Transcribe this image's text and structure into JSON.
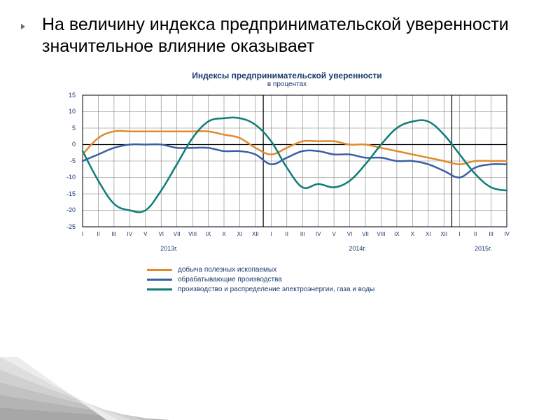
{
  "headline": "На величину индекса предпринимательской уверенности значительное влияние оказывает",
  "chart": {
    "type": "line",
    "title": "Индексы предпринимательской уверенности",
    "subtitle": "в процентах",
    "title_fontsize": 12,
    "title_color": "#1a3a6e",
    "background_color": "#ffffff",
    "grid_color": "#7f7f7f",
    "grid_width": 0.6,
    "axis_color": "#000000",
    "ylim": [
      -25,
      15
    ],
    "ytick_step": 5,
    "yticks": [
      15,
      10,
      5,
      0,
      -5,
      -10,
      -15,
      -20,
      -25
    ],
    "x_categories": [
      "I",
      "II",
      "III",
      "IV",
      "V",
      "VI",
      "VII",
      "VIII",
      "IX",
      "X",
      "XI",
      "XII",
      "I",
      "II",
      "III",
      "IV",
      "V",
      "VI",
      "VII",
      "VIII",
      "IX",
      "X",
      "XI",
      "XII",
      "I",
      "II",
      "III",
      "IV"
    ],
    "x_groups": [
      {
        "label": "2013г.",
        "center_index": 5.5
      },
      {
        "label": "2014г.",
        "center_index": 17.5
      },
      {
        "label": "2015г.",
        "center_index": 25.5
      }
    ],
    "line_width": 2.5,
    "series": [
      {
        "name": "добыча полезных ископаемых",
        "color": "#e08b2c",
        "values": [
          -3,
          2,
          4,
          4,
          4,
          4,
          4,
          4,
          4,
          3,
          2,
          -1,
          -3,
          -1,
          1,
          1,
          1,
          0,
          0,
          -1,
          -2,
          -3,
          -4,
          -5,
          -6,
          -5,
          -5,
          -5
        ]
      },
      {
        "name": "обрабатывающие производства",
        "color": "#3b5fa4",
        "values": [
          -5,
          -3,
          -1,
          0,
          0,
          0,
          -1,
          -1,
          -1,
          -2,
          -2,
          -3,
          -6,
          -4,
          -2,
          -2,
          -3,
          -3,
          -4,
          -4,
          -5,
          -5,
          -6,
          -8,
          -10,
          -7,
          -6,
          -6
        ]
      },
      {
        "name": "производство и распределение электроэнергии, газа и воды",
        "color": "#0f7d78",
        "values": [
          -2,
          -11,
          -18,
          -20,
          -20,
          -14,
          -6,
          2,
          7,
          8,
          8,
          6,
          1,
          -7,
          -13,
          -12,
          -13,
          -11,
          -6,
          0,
          5,
          7,
          7,
          3,
          -3,
          -9,
          -13,
          -14
        ]
      }
    ]
  },
  "corner_stripe_colors": [
    "#a7a7a7",
    "#b4b4b4",
    "#c2c2c2",
    "#d0d0d0",
    "#dedede",
    "#ececec"
  ]
}
